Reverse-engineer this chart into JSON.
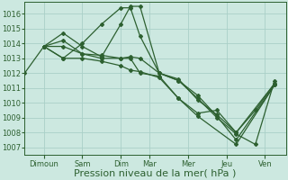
{
  "title": "Pression niveau de la mer( hPa )",
  "bg_color": "#cce8e0",
  "grid_color": "#aad0c8",
  "line_color": "#2d6030",
  "ylim": [
    1006.5,
    1016.8
  ],
  "yticks": [
    1007,
    1008,
    1009,
    1010,
    1011,
    1012,
    1013,
    1014,
    1015,
    1016
  ],
  "xtick_labels": [
    "Dimoun",
    "Sam",
    "Dim",
    "Mar",
    "Mer",
    "Jeu",
    "Ven"
  ],
  "lines": [
    [
      1012.0,
      1013.8,
      1013.0,
      1014.0,
      1015.3,
      1016.4,
      1016.4,
      1014.5,
      1012.0,
      1011.5,
      1010.3,
      1009.0,
      1007.9,
      1007.2,
      1011.5
    ],
    [
      1013.8,
      1014.7,
      1013.8,
      1013.1,
      1015.3,
      1016.5,
      1016.5,
      1012.0,
      1011.6,
      1010.2,
      1009.2,
      1008.0,
      1009.5,
      1011.3
    ],
    [
      1013.8,
      1013.8,
      1013.3,
      1013.2,
      1013.0,
      1013.1,
      1013.0,
      1012.0,
      1011.5,
      1010.5,
      1009.1,
      1007.5,
      1011.2
    ],
    [
      1013.8,
      1014.2,
      1013.3,
      1013.0,
      1013.0,
      1013.0,
      1012.0,
      1011.8,
      1010.3,
      1009.3,
      1009.5,
      1008.0,
      1011.3
    ],
    [
      1013.8,
      1013.0,
      1013.0,
      1012.8,
      1012.5,
      1012.2,
      1012.1,
      1011.7,
      1010.3,
      1009.1,
      1007.2,
      1011.2
    ]
  ],
  "line_x_positions": [
    [
      0.0,
      0.5,
      1.0,
      1.5,
      2.0,
      2.5,
      2.75,
      3.0,
      3.5,
      4.0,
      4.5,
      5.0,
      5.5,
      6.0,
      6.5
    ],
    [
      0.5,
      1.0,
      1.5,
      2.0,
      2.5,
      2.75,
      3.0,
      3.5,
      4.0,
      4.5,
      5.0,
      5.5,
      6.0,
      6.5
    ],
    [
      0.5,
      1.0,
      1.5,
      2.0,
      2.5,
      2.75,
      3.0,
      3.5,
      4.0,
      4.5,
      5.0,
      5.5,
      6.5
    ],
    [
      0.5,
      1.0,
      1.5,
      2.0,
      2.5,
      2.75,
      3.0,
      3.5,
      4.0,
      4.5,
      5.0,
      5.5,
      6.5
    ],
    [
      0.5,
      1.0,
      1.5,
      2.0,
      2.5,
      2.75,
      3.0,
      3.5,
      4.0,
      4.5,
      5.5,
      6.5
    ]
  ],
  "xtick_positions": [
    0.5,
    1.5,
    2.5,
    3.25,
    4.25,
    5.25,
    6.25
  ],
  "marker": "D",
  "marker_size": 2.0,
  "linewidth": 0.9,
  "xlabel_fontsize": 8,
  "tick_fontsize": 6.0
}
